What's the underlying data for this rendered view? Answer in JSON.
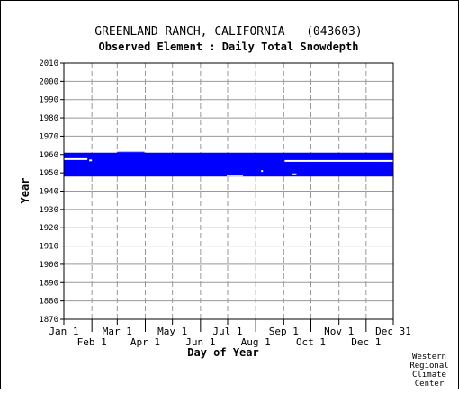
{
  "chart_data": {
    "type": "bar",
    "title": "GREENLAND RANCH, CALIFORNIA   (043603)",
    "subtitle": "Observed Element : Daily Total Snowdepth",
    "xlabel": "Day of Year",
    "ylabel": "Year",
    "ylim": [
      1870,
      2010
    ],
    "yticks": [
      1870,
      1880,
      1890,
      1900,
      1910,
      1920,
      1930,
      1940,
      1950,
      1960,
      1970,
      1980,
      1990,
      2000,
      2010
    ],
    "xlim": [
      "Jan 1",
      "Dec 31"
    ],
    "xticks_upper": [
      "Jan 1",
      "Mar 1",
      "May 1",
      "Jul 1",
      "Sep 1",
      "Nov 1",
      "Dec 31"
    ],
    "xticks_lower": [
      "Feb 1",
      "Apr 1",
      "Jun 1",
      "Aug 1",
      "Oct 1",
      "Dec 1"
    ],
    "grid": true,
    "color": "#0000ff",
    "coverage_note": "Solid blue band of daily records spanning approximately 1948 through 1961 across all days of year, with small data gaps around 1957-1958 in early year and later months.",
    "record_segments": [
      {
        "year_start": 1948,
        "year_end": 1961,
        "day_start": 1,
        "day_end": 365
      },
      {
        "year_start": 1961,
        "year_end": 1961.5,
        "day_start": 60,
        "day_end": 90
      }
    ],
    "gaps": [
      {
        "year": 1957.5,
        "day_start": 1,
        "day_end": 27
      },
      {
        "year": 1956.8,
        "day_start": 29,
        "day_end": 32
      },
      {
        "year": 1956.5,
        "day_start": 245,
        "day_end": 365
      },
      {
        "year": 1951,
        "day_start": 219,
        "day_end": 221
      },
      {
        "year": 1949.2,
        "day_start": 253,
        "day_end": 258
      }
    ],
    "notch_days_late_start": [
      {
        "year_start": 1948,
        "year_end": 1948.5,
        "day_start": 181,
        "day_end": 199
      }
    ]
  },
  "credit": [
    "Western",
    "Regional",
    "Climate",
    "Center"
  ]
}
